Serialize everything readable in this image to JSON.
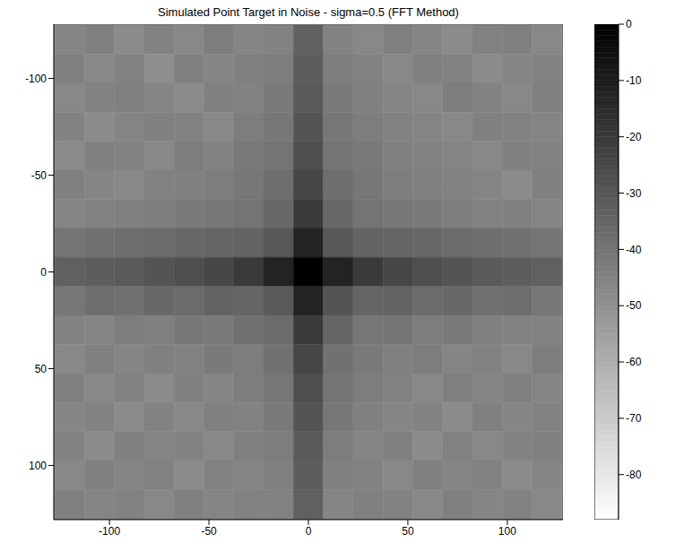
{
  "chart_data": {
    "type": "heatmap",
    "title": "Simulated Point Target in Noise - sigma=0.5 (FFT Method)",
    "x": [
      -120,
      -105,
      -90,
      -75,
      -60,
      -45,
      -30,
      -15,
      0,
      15,
      30,
      45,
      60,
      75,
      90,
      105,
      120
    ],
    "y": [
      -120,
      -105,
      -90,
      -75,
      -60,
      -45,
      -30,
      -15,
      0,
      15,
      30,
      45,
      60,
      75,
      90,
      105,
      120
    ],
    "cells": [
      [
        -46,
        -44,
        -48,
        -45,
        -47,
        -43,
        -46,
        -45,
        -33,
        -45,
        -47,
        -44,
        -46,
        -48,
        -45,
        -44,
        -47
      ],
      [
        -44,
        -47,
        -45,
        -49,
        -44,
        -46,
        -44,
        -43,
        -32,
        -43,
        -45,
        -47,
        -44,
        -45,
        -48,
        -46,
        -45
      ],
      [
        -47,
        -45,
        -44,
        -46,
        -48,
        -44,
        -45,
        -42,
        -31,
        -42,
        -44,
        -46,
        -47,
        -43,
        -45,
        -47,
        -44
      ],
      [
        -45,
        -48,
        -46,
        -44,
        -45,
        -47,
        -43,
        -41,
        -29,
        -41,
        -43,
        -45,
        -46,
        -47,
        -44,
        -45,
        -46
      ],
      [
        -48,
        -44,
        -45,
        -47,
        -43,
        -45,
        -42,
        -40,
        -27,
        -40,
        -42,
        -44,
        -45,
        -46,
        -47,
        -44,
        -45
      ],
      [
        -44,
        -46,
        -47,
        -45,
        -44,
        -43,
        -41,
        -38,
        -24,
        -38,
        -41,
        -43,
        -44,
        -45,
        -46,
        -48,
        -44
      ],
      [
        -46,
        -45,
        -44,
        -43,
        -42,
        -41,
        -40,
        -36,
        -20,
        -36,
        -40,
        -41,
        -42,
        -43,
        -45,
        -44,
        -46
      ],
      [
        -40,
        -39,
        -38,
        -37,
        -36,
        -35,
        -34,
        -30,
        -12,
        -30,
        -34,
        -35,
        -36,
        -37,
        -38,
        -39,
        -40
      ],
      [
        -33,
        -32,
        -31,
        -29,
        -27,
        -24,
        -20,
        -12,
        0,
        -12,
        -20,
        -24,
        -27,
        -29,
        -31,
        -32,
        -33
      ],
      [
        -41,
        -38,
        -39,
        -36,
        -37,
        -34,
        -35,
        -31,
        -12,
        -29,
        -35,
        -34,
        -37,
        -36,
        -39,
        -38,
        -41
      ],
      [
        -45,
        -46,
        -43,
        -44,
        -41,
        -42,
        -39,
        -37,
        -20,
        -35,
        -41,
        -40,
        -43,
        -42,
        -44,
        -45,
        -45
      ],
      [
        -47,
        -44,
        -46,
        -44,
        -45,
        -42,
        -43,
        -39,
        -24,
        -39,
        -42,
        -44,
        -43,
        -46,
        -45,
        -47,
        -43
      ],
      [
        -44,
        -47,
        -45,
        -48,
        -44,
        -46,
        -43,
        -41,
        -27,
        -40,
        -43,
        -45,
        -47,
        -44,
        -46,
        -44,
        -46
      ],
      [
        -46,
        -45,
        -48,
        -45,
        -47,
        -44,
        -45,
        -42,
        -29,
        -41,
        -44,
        -46,
        -45,
        -48,
        -44,
        -46,
        -45
      ],
      [
        -45,
        -48,
        -44,
        -46,
        -45,
        -47,
        -44,
        -43,
        -31,
        -43,
        -46,
        -44,
        -48,
        -45,
        -47,
        -45,
        -44
      ],
      [
        -47,
        -44,
        -46,
        -45,
        -48,
        -45,
        -46,
        -44,
        -32,
        -44,
        -45,
        -47,
        -44,
        -46,
        -45,
        -48,
        -46
      ],
      [
        -44,
        -46,
        -45,
        -47,
        -44,
        -46,
        -45,
        -45,
        -33,
        -46,
        -44,
        -45,
        -47,
        -44,
        -46,
        -45,
        -47
      ]
    ],
    "xlim": [
      -128,
      128
    ],
    "ylim": [
      128,
      -128
    ],
    "xticks": [
      -100,
      -50,
      0,
      50,
      100
    ],
    "yticks": [
      -100,
      -50,
      0,
      50,
      100
    ],
    "colorbar_range": [
      -88,
      0
    ],
    "colorbar_ticks": [
      0,
      -10,
      -20,
      -30,
      -40,
      -50,
      -60,
      -70,
      -80
    ]
  }
}
